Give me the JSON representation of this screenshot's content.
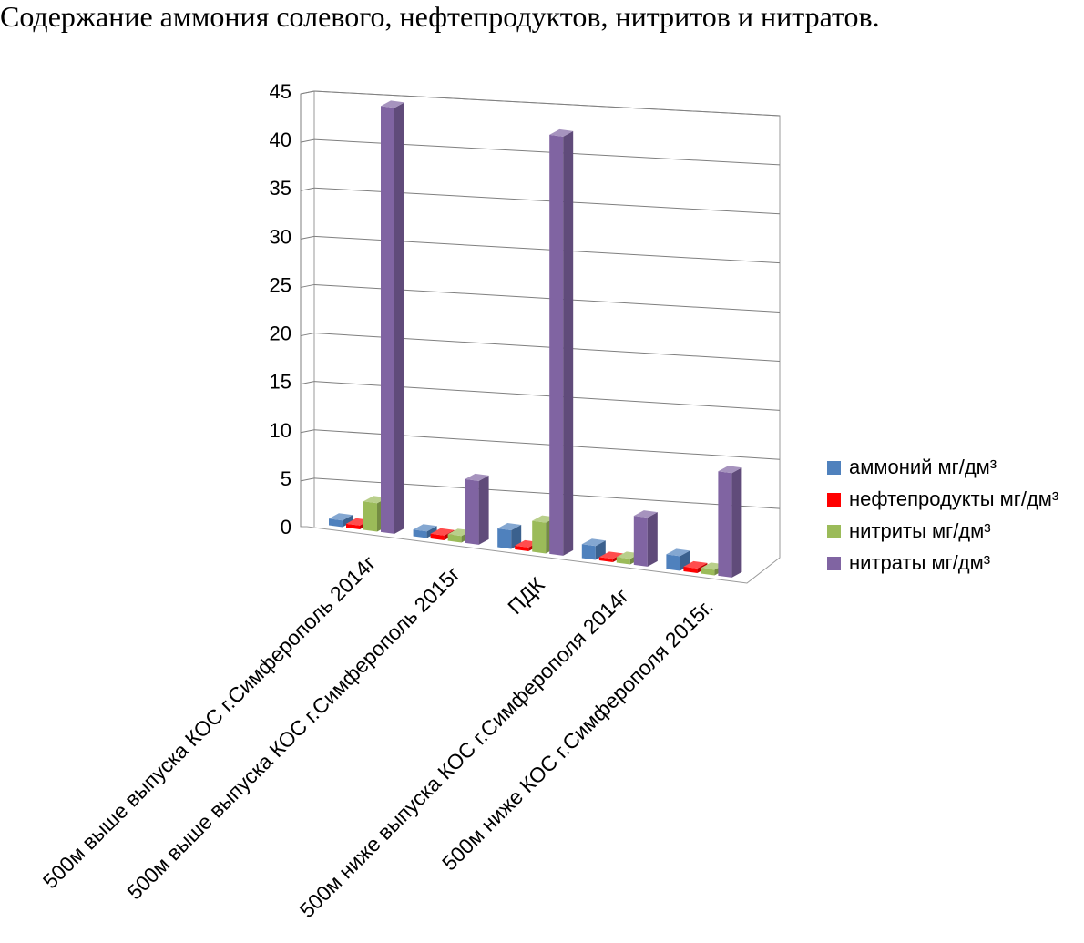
{
  "chart_data": {
    "type": "bar",
    "title": "Содержание аммония солевого, нефтепродуктов, нитритов и нитратов.",
    "categories": [
      "500м выше выпуска КОС г.Симферополь 2014г",
      "500м выше выпуска КОС г.Симферополь 2015г",
      "ПДК",
      "500м ниже  выпуска КОС г.Симферополя 2014г",
      "500м  ниже КОС г.Симферополя 2015г."
    ],
    "series": [
      {
        "name": "аммоний мг/дм³",
        "color": "#4F81BD",
        "values": [
          0.7,
          0.7,
          2.0,
          1.5,
          1.6
        ]
      },
      {
        "name": "нефтепродукты мг/дм³",
        "color": "#FF0000",
        "values": [
          0.4,
          0.5,
          0.4,
          0.35,
          0.5
        ]
      },
      {
        "name": "нитриты мг/дм³",
        "color": "#9BBB59",
        "values": [
          3.0,
          0.7,
          3.3,
          0.6,
          0.6
        ]
      },
      {
        "name": "нитраты мг/дм³",
        "color": "#8064A2",
        "values": [
          45,
          6.8,
          45,
          5.3,
          11.4
        ]
      }
    ],
    "ylim": [
      0,
      45
    ],
    "yticks": [
      "0",
      "5",
      "10",
      "15",
      "20",
      "25",
      "30",
      "35",
      "40",
      "45"
    ],
    "ytick_values": [
      0,
      5,
      10,
      15,
      20,
      25,
      30,
      35,
      40,
      45
    ],
    "legend_position": "right",
    "grid": true
  }
}
